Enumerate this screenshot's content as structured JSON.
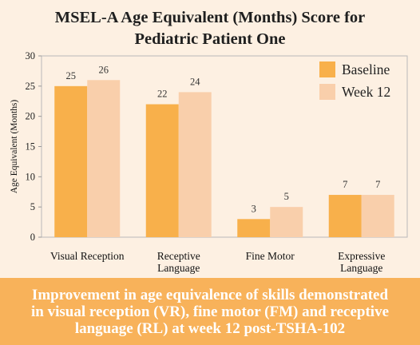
{
  "chart_data": {
    "type": "bar",
    "title_lines": [
      "MSEL-A Age Equivalent (Months) Score for",
      "Pediatric Patient One"
    ],
    "ylabel": "Age Equivalent (Months)",
    "xlabel": "",
    "ylim": [
      0,
      30
    ],
    "yticks": [
      0,
      5,
      10,
      15,
      20,
      25,
      30
    ],
    "grid": false,
    "legend_position": "top-right",
    "categories": [
      [
        "Visual Reception"
      ],
      [
        "Receptive",
        "Language"
      ],
      [
        "Fine Motor"
      ],
      [
        "Expressive",
        "Language"
      ]
    ],
    "series": [
      {
        "name": "Baseline",
        "color": "#f8b04b",
        "values": [
          25,
          22,
          3,
          7
        ]
      },
      {
        "name": "Week 12",
        "color": "#f9cfab",
        "values": [
          26,
          24,
          5,
          7
        ]
      }
    ]
  },
  "caption": {
    "lines": [
      "Improvement in age equivalence of skills demonstrated",
      "in visual reception (VR), fine motor (FM) and receptive",
      "language (RL) at week 12 post-TSHA-102"
    ]
  }
}
